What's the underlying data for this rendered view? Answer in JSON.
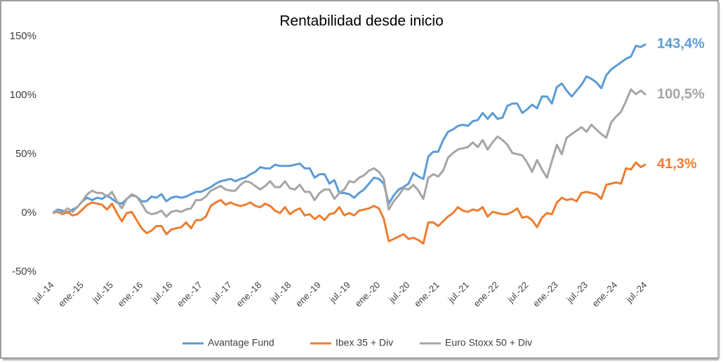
{
  "chart_data": {
    "type": "line",
    "title": "Rentabilidad desde inicio",
    "categories": [
      "jul.-14",
      null,
      null,
      null,
      null,
      null,
      "ene.-15",
      null,
      null,
      null,
      null,
      null,
      "jul.-15",
      null,
      null,
      null,
      null,
      null,
      "ene.-16",
      null,
      null,
      null,
      null,
      null,
      "jul.-16",
      null,
      null,
      null,
      null,
      null,
      "ene.-17",
      null,
      null,
      null,
      null,
      null,
      "jul.-17",
      null,
      null,
      null,
      null,
      null,
      "ene.-18",
      null,
      null,
      null,
      null,
      null,
      "jul.-18",
      null,
      null,
      null,
      null,
      null,
      "ene.-19",
      null,
      null,
      null,
      null,
      null,
      "jul.-19",
      null,
      null,
      null,
      null,
      null,
      "ene.-20",
      null,
      null,
      null,
      null,
      null,
      "jul.-20",
      null,
      null,
      null,
      null,
      null,
      "ene.-21",
      null,
      null,
      null,
      null,
      null,
      "jul.-21",
      null,
      null,
      null,
      null,
      null,
      "ene.-22",
      null,
      null,
      null,
      null,
      null,
      "jul.-22",
      null,
      null,
      null,
      null,
      null,
      "ene.-23",
      null,
      null,
      null,
      null,
      null,
      "jul.-23",
      null,
      null,
      null,
      null,
      null,
      "ene.-24",
      null,
      null,
      null,
      null,
      null,
      "jul.-24"
    ],
    "series": [
      {
        "name": "Avantage Fund",
        "color": "#5b9bd5",
        "values": [
          0,
          3,
          2,
          0,
          3,
          5,
          10,
          13,
          11,
          13,
          12,
          15,
          12,
          9,
          8,
          12,
          15,
          14,
          10,
          10,
          14,
          13,
          16,
          10,
          13,
          14,
          13,
          14,
          16,
          18,
          18,
          20,
          22,
          25,
          27,
          28,
          29,
          27,
          29,
          30,
          33,
          35,
          39,
          38,
          38,
          41,
          40,
          40,
          40,
          41,
          42,
          38,
          38,
          30,
          33,
          33,
          25,
          28,
          17,
          17,
          16,
          13,
          17,
          20,
          25,
          30,
          29,
          25,
          8,
          15,
          20,
          22,
          25,
          34,
          31,
          29,
          48,
          52,
          52,
          62,
          69,
          71,
          74,
          75,
          74,
          78,
          79,
          85,
          80,
          85,
          80,
          81,
          91,
          93,
          93,
          85,
          88,
          92,
          89,
          99,
          99,
          93,
          107,
          110,
          104,
          99,
          104,
          109,
          116,
          114,
          111,
          106,
          117,
          122,
          125,
          128,
          131,
          133,
          142,
          141,
          143.4
        ],
        "value_labels": [
          null,
          null,
          null,
          null,
          null,
          null,
          null,
          null,
          null,
          null,
          null,
          null,
          null,
          null,
          null,
          null,
          null,
          null,
          null,
          null,
          null,
          null,
          null,
          null,
          null,
          null,
          null,
          null,
          null,
          null,
          null,
          null,
          null,
          null,
          null,
          null,
          null,
          null,
          null,
          null,
          null,
          null,
          null,
          null,
          null,
          null,
          null,
          null,
          null,
          null,
          null,
          null,
          null,
          null,
          null,
          null,
          null,
          null,
          null,
          null,
          null,
          null,
          null,
          null,
          null,
          null,
          null,
          null,
          null,
          null,
          null,
          null,
          null,
          null,
          null,
          null,
          null,
          null,
          null,
          null,
          null,
          null,
          null,
          null,
          null,
          null,
          null,
          null,
          null,
          null,
          null,
          null,
          null,
          null,
          null,
          null,
          null,
          null,
          null,
          null,
          null,
          null,
          null,
          null,
          null,
          null,
          null,
          null,
          null,
          null,
          null,
          null,
          null,
          null,
          null,
          null,
          null,
          null,
          null,
          null,
          "143,4%"
        ]
      },
      {
        "name": "Ibex 35 + Div",
        "color": "#ed7d31",
        "values": [
          0,
          1,
          -1,
          1,
          -2,
          -1,
          3,
          7,
          9,
          8,
          7,
          3,
          8,
          0,
          -7,
          0,
          1,
          -6,
          -13,
          -17,
          -15,
          -11,
          -11,
          -18,
          -14,
          -13,
          -12,
          -8,
          -13,
          -6,
          -6,
          -3,
          6,
          9,
          11,
          7,
          9,
          7,
          6,
          7,
          9,
          6,
          5,
          8,
          6,
          2,
          0,
          5,
          -1,
          2,
          4,
          -2,
          -1,
          -5,
          -2,
          -6,
          -1,
          0,
          5,
          -2,
          0,
          -2,
          2,
          3,
          4,
          6,
          4,
          -5,
          -24,
          -22,
          -20,
          -18,
          -22,
          -21,
          -23,
          -26,
          -8,
          -8,
          -11,
          -7,
          -3,
          0,
          5,
          2,
          1,
          3,
          2,
          5,
          -3,
          1,
          0,
          -1,
          -1,
          1,
          4,
          -4,
          -3,
          -6,
          -12,
          -4,
          0,
          -1,
          9,
          13,
          11,
          12,
          10,
          17,
          18,
          17,
          16,
          12,
          24,
          25,
          26,
          25,
          38,
          37,
          43,
          39,
          41.3
        ],
        "value_labels": [
          null,
          null,
          null,
          null,
          null,
          null,
          null,
          null,
          null,
          null,
          null,
          null,
          null,
          null,
          null,
          null,
          null,
          null,
          null,
          null,
          null,
          null,
          null,
          null,
          null,
          null,
          null,
          null,
          null,
          null,
          null,
          null,
          null,
          null,
          null,
          null,
          null,
          null,
          null,
          null,
          null,
          null,
          null,
          null,
          null,
          null,
          null,
          null,
          null,
          null,
          null,
          null,
          null,
          null,
          null,
          null,
          null,
          null,
          null,
          null,
          null,
          null,
          null,
          null,
          null,
          null,
          null,
          null,
          null,
          null,
          null,
          null,
          null,
          null,
          null,
          null,
          null,
          null,
          null,
          null,
          null,
          null,
          null,
          null,
          null,
          null,
          null,
          null,
          null,
          null,
          null,
          null,
          null,
          null,
          null,
          null,
          null,
          null,
          null,
          null,
          null,
          null,
          null,
          null,
          null,
          null,
          null,
          null,
          null,
          null,
          null,
          null,
          null,
          null,
          null,
          null,
          null,
          null,
          null,
          null,
          "41,3%"
        ]
      },
      {
        "name": "Euro Stoxx 50 + Div",
        "color": "#a5a5a5",
        "values": [
          0,
          2,
          0,
          4,
          1,
          5,
          10,
          16,
          19,
          17,
          17,
          14,
          18,
          10,
          4,
          12,
          16,
          14,
          8,
          1,
          -1,
          0,
          2,
          -3,
          1,
          2,
          1,
          3,
          4,
          11,
          11,
          14,
          19,
          21,
          23,
          20,
          19,
          19,
          24,
          27,
          26,
          23,
          20,
          23,
          27,
          22,
          22,
          27,
          21,
          20,
          24,
          18,
          18,
          11,
          17,
          20,
          20,
          12,
          17,
          20,
          27,
          26,
          30,
          32,
          36,
          38,
          35,
          29,
          3,
          10,
          15,
          21,
          20,
          24,
          19,
          12,
          30,
          33,
          31,
          36,
          47,
          51,
          54,
          55,
          56,
          60,
          56,
          62,
          54,
          60,
          65,
          62,
          58,
          51,
          50,
          49,
          43,
          35,
          45,
          37,
          30,
          44,
          58,
          50,
          64,
          67,
          70,
          73,
          69,
          75,
          71,
          67,
          64,
          77,
          82,
          86,
          95,
          105,
          101,
          104,
          100.5
        ],
        "value_labels": [
          null,
          null,
          null,
          null,
          null,
          null,
          null,
          null,
          null,
          null,
          null,
          null,
          null,
          null,
          null,
          null,
          null,
          null,
          null,
          null,
          null,
          null,
          null,
          null,
          null,
          null,
          null,
          null,
          null,
          null,
          null,
          null,
          null,
          null,
          null,
          null,
          null,
          null,
          null,
          null,
          null,
          null,
          null,
          null,
          null,
          null,
          null,
          null,
          null,
          null,
          null,
          null,
          null,
          null,
          null,
          null,
          null,
          null,
          null,
          null,
          null,
          null,
          null,
          null,
          null,
          null,
          null,
          null,
          null,
          null,
          null,
          null,
          null,
          null,
          null,
          null,
          null,
          null,
          null,
          null,
          null,
          null,
          null,
          null,
          null,
          null,
          null,
          null,
          null,
          null,
          null,
          null,
          null,
          null,
          null,
          null,
          null,
          null,
          null,
          null,
          null,
          null,
          null,
          null,
          null,
          null,
          null,
          null,
          null,
          null,
          null,
          null,
          null,
          null,
          null,
          null,
          null,
          null,
          null,
          null,
          "100,5%"
        ]
      }
    ],
    "ylim": [
      -50,
      150
    ],
    "yticks": [
      {
        "value": -50,
        "label": "-50%"
      },
      {
        "value": 0,
        "label": "0%"
      },
      {
        "value": 50,
        "label": "50%"
      },
      {
        "value": 100,
        "label": "100%"
      },
      {
        "value": 150,
        "label": "150%"
      }
    ],
    "grid": false,
    "legend": "bottom"
  }
}
